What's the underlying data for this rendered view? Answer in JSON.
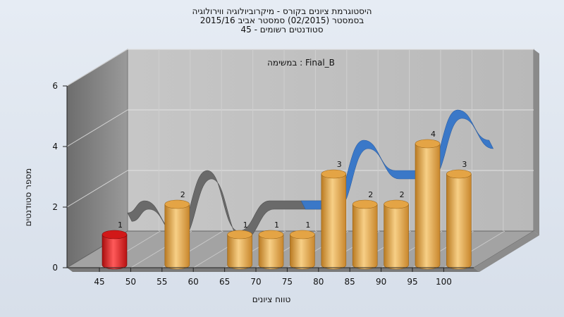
{
  "chart_data": {
    "type": "bar",
    "title_lines": [
      "היסטוגרמת ציונים בקורס - מיקרוביולוגיה ווירולוגיה",
      "בסמסטר  (02/2015)  סמסטר אביב 2015/16",
      "סטודנטים רשומים - 45"
    ],
    "annotation": "במשימה : Final_B",
    "xlabel": "טווח ציונים",
    "ylabel": "מספר סטודנטים",
    "categories": [
      "45",
      "50",
      "55",
      "60",
      "65",
      "70",
      "75",
      "80",
      "85",
      "90",
      "95",
      "100"
    ],
    "values": [
      1,
      0,
      2,
      0,
      1,
      1,
      1,
      3,
      2,
      2,
      4,
      3
    ],
    "highlight_index": 0,
    "y_ticks": [
      0,
      2,
      4,
      6
    ],
    "ylim": [
      0,
      6
    ],
    "grid": true,
    "colors": {
      "bar": "#e8a94a",
      "highlight": "#e01b1b",
      "ribbon_back": "#6a6a6a",
      "ribbon_front": "#3a78c8",
      "back_wall": "#bfbfbf",
      "side_wall": "#8f8f8f",
      "floor": "#a7a7a7"
    }
  }
}
